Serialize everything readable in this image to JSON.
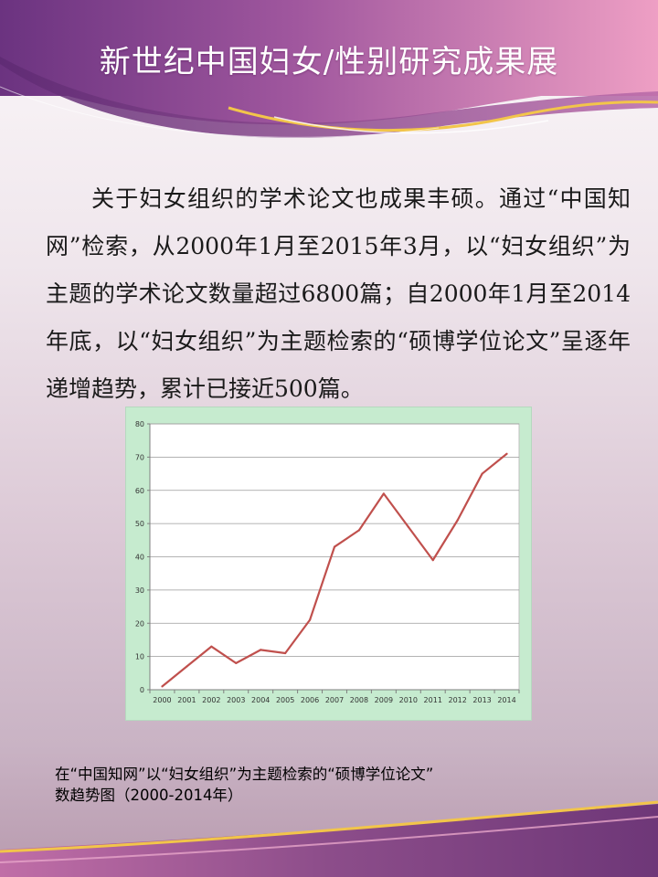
{
  "header": {
    "title": "新世纪中国妇女/性别研究成果展"
  },
  "body": {
    "paragraph": "关于妇女组织的学术论文也成果丰硕。通过“中国知网”检索，从2000年1月至2015年3月，以“妇女组织”为主题的学术论文数量超过6800篇；自2000年1月至2014年底，以“妇女组织”为主题检索的“硕博学位论文”呈逐年递增趋势，累计已接近500篇。"
  },
  "chart_data": {
    "type": "line",
    "categories": [
      "2000",
      "2001",
      "2002",
      "2003",
      "2004",
      "2005",
      "2006",
      "2007",
      "2008",
      "2009",
      "2010",
      "2011",
      "2012",
      "2013",
      "2014"
    ],
    "series": [
      {
        "values": [
          1,
          7,
          13,
          8,
          12,
          11,
          21,
          43,
          48,
          59,
          49,
          39,
          51,
          65,
          71
        ]
      }
    ],
    "ylim": [
      0,
      80
    ],
    "yticks": [
      0,
      10,
      20,
      30,
      40,
      50,
      60,
      70,
      80
    ],
    "grid": true,
    "line_color": "#c0504d",
    "plot_background": "#ffffff",
    "panel_background": "#c6ebcf"
  },
  "caption": {
    "line1": "在“中国知网”以“妇女组织”为主题检索的“硕博学位论文”",
    "line2": "数趋势图（2000-2014年）"
  },
  "colors": {
    "header_purple": "#7a3f86",
    "header_pink": "#e89ac0",
    "swoosh_gold": "#f2c54a",
    "footer_purple": "#8c4d8a"
  }
}
